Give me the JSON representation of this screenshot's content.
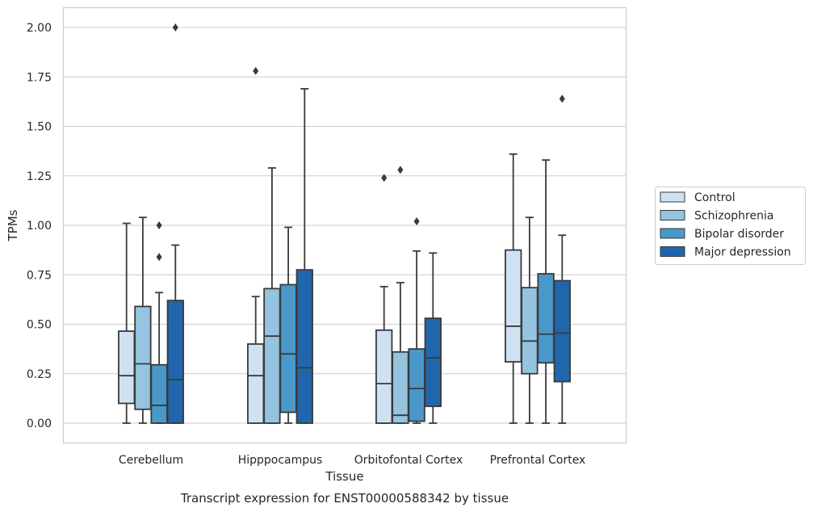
{
  "chart_data": {
    "type": "box",
    "title": "Transcript expression for ENST00000588342 by tissue",
    "xlabel": "Tissue",
    "ylabel": "TPMs",
    "ylim": [
      -0.1,
      2.1
    ],
    "yticks": [
      "0.00",
      "0.25",
      "0.50",
      "0.75",
      "1.00",
      "1.25",
      "1.50",
      "1.75",
      "2.00"
    ],
    "grid": "horizontal",
    "legend_position": "right",
    "categories": [
      "Cerebellum",
      "Hipppocampus",
      "Orbitofontal Cortex",
      "Prefrontal Cortex"
    ],
    "series": [
      {
        "name": "Control",
        "color": "#d0e1f2",
        "boxes": [
          {
            "whisker_low": 0.0,
            "q1": 0.1,
            "median": 0.24,
            "q3": 0.465,
            "whisker_high": 1.01,
            "outliers": []
          },
          {
            "whisker_low": 0.0,
            "q1": 0.0,
            "median": 0.24,
            "q3": 0.4,
            "whisker_high": 0.64,
            "outliers": [
              1.78
            ]
          },
          {
            "whisker_low": 0.0,
            "q1": 0.0,
            "median": 0.2,
            "q3": 0.47,
            "whisker_high": 0.69,
            "outliers": [
              1.24
            ]
          },
          {
            "whisker_low": 0.0,
            "q1": 0.31,
            "median": 0.49,
            "q3": 0.875,
            "whisker_high": 1.36,
            "outliers": []
          }
        ]
      },
      {
        "name": "Schizophrenia",
        "color": "#94c4df",
        "boxes": [
          {
            "whisker_low": 0.0,
            "q1": 0.07,
            "median": 0.3,
            "q3": 0.59,
            "whisker_high": 1.04,
            "outliers": []
          },
          {
            "whisker_low": 0.0,
            "q1": 0.0,
            "median": 0.44,
            "q3": 0.68,
            "whisker_high": 1.29,
            "outliers": []
          },
          {
            "whisker_low": 0.0,
            "q1": 0.0,
            "median": 0.04,
            "q3": 0.36,
            "whisker_high": 0.71,
            "outliers": [
              1.28
            ]
          },
          {
            "whisker_low": 0.0,
            "q1": 0.25,
            "median": 0.415,
            "q3": 0.685,
            "whisker_high": 1.04,
            "outliers": []
          }
        ]
      },
      {
        "name": "Bipolar disorder",
        "color": "#4a98c9",
        "boxes": [
          {
            "whisker_low": 0.0,
            "q1": 0.0,
            "median": 0.09,
            "q3": 0.295,
            "whisker_high": 0.66,
            "outliers": [
              0.84,
              1.0
            ]
          },
          {
            "whisker_low": 0.0,
            "q1": 0.055,
            "median": 0.35,
            "q3": 0.7,
            "whisker_high": 0.99,
            "outliers": []
          },
          {
            "whisker_low": 0.0,
            "q1": 0.01,
            "median": 0.175,
            "q3": 0.375,
            "whisker_high": 0.87,
            "outliers": [
              1.02
            ]
          },
          {
            "whisker_low": 0.0,
            "q1": 0.305,
            "median": 0.45,
            "q3": 0.755,
            "whisker_high": 1.33,
            "outliers": []
          }
        ]
      },
      {
        "name": "Major depression",
        "color": "#2166ac",
        "boxes": [
          {
            "whisker_low": 0.0,
            "q1": 0.0,
            "median": 0.22,
            "q3": 0.62,
            "whisker_high": 0.9,
            "outliers": [
              2.0
            ]
          },
          {
            "whisker_low": 0.0,
            "q1": 0.0,
            "median": 0.28,
            "q3": 0.775,
            "whisker_high": 1.69,
            "outliers": []
          },
          {
            "whisker_low": 0.0,
            "q1": 0.085,
            "median": 0.33,
            "q3": 0.53,
            "whisker_high": 0.86,
            "outliers": []
          },
          {
            "whisker_low": 0.0,
            "q1": 0.21,
            "median": 0.455,
            "q3": 0.72,
            "whisker_high": 0.95,
            "outliers": [
              1.64
            ]
          }
        ]
      }
    ]
  },
  "style": {
    "line_color": "#3a3a3a",
    "grid_color": "#cccccc",
    "frame_color": "#cccccc"
  }
}
